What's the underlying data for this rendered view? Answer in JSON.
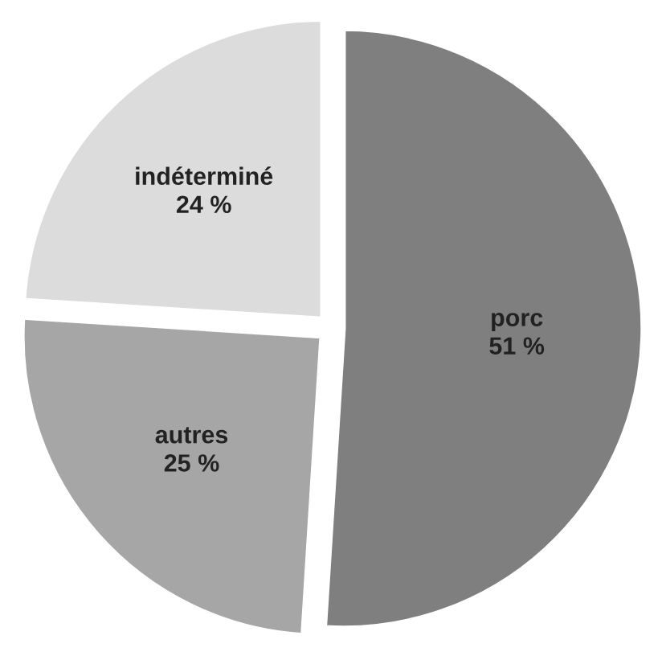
{
  "chart_data": {
    "type": "pie",
    "categories": [
      "porc",
      "autres",
      "indéterminé"
    ],
    "values": [
      51,
      25,
      24
    ],
    "value_labels": [
      "51 %",
      "25 %",
      "24 %"
    ],
    "colors": [
      "#7f7f7f",
      "#a6a6a6",
      "#dcdcdc"
    ]
  }
}
